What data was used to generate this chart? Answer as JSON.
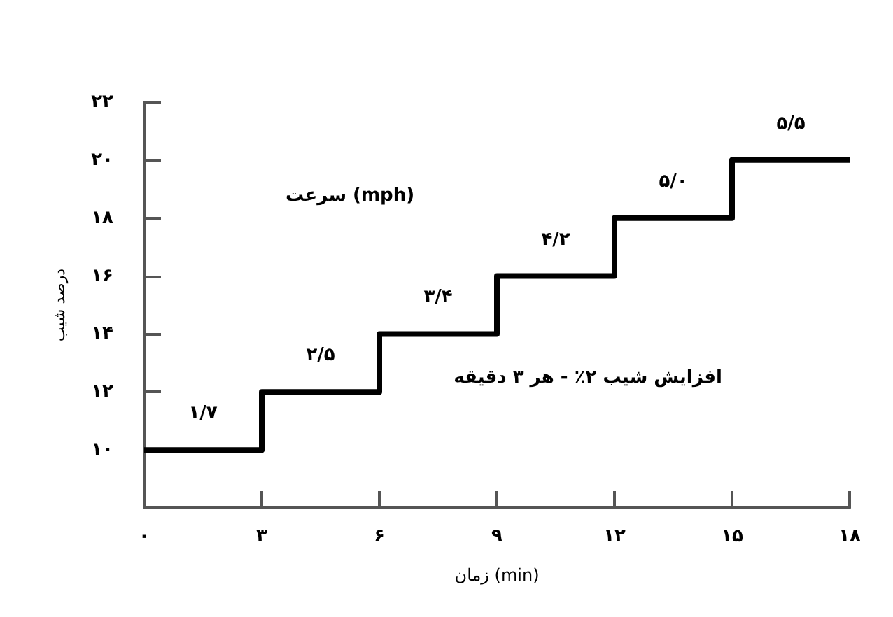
{
  "chart_data": {
    "type": "step",
    "xlabel": "زمان (min)",
    "ylabel": "درصد شیب",
    "x": [
      0,
      3,
      6,
      9,
      12,
      15,
      18
    ],
    "series": [
      {
        "color": "#000000",
        "values": [
          10,
          12,
          14,
          16,
          18,
          20,
          20
        ]
      }
    ],
    "xlim": [
      0,
      18
    ],
    "xticks": [
      {
        "value": 0,
        "label": "۰"
      },
      {
        "value": 3,
        "label": "۳"
      },
      {
        "value": 6,
        "label": "۶"
      },
      {
        "value": 9,
        "label": "۹"
      },
      {
        "value": 12,
        "label": "۱۲"
      },
      {
        "value": 15,
        "label": "۱۵"
      },
      {
        "value": 18,
        "label": "۱۸"
      }
    ],
    "ylim": [
      8,
      22
    ],
    "yticks": [
      {
        "value": 10,
        "label": "۱۰"
      },
      {
        "value": 12,
        "label": "۱۲"
      },
      {
        "value": 14,
        "label": "۱۴"
      },
      {
        "value": 16,
        "label": "۱۶"
      },
      {
        "value": 18,
        "label": "۱۸"
      },
      {
        "value": 20,
        "label": "۲۰"
      },
      {
        "value": 22,
        "label": "۲۲"
      }
    ],
    "annotations": [
      {
        "text": "۱/۷",
        "x": 1.5,
        "y": 10
      },
      {
        "text": "۲/۵",
        "x": 4.5,
        "y": 12
      },
      {
        "text": "۳/۴",
        "x": 7.5,
        "y": 14
      },
      {
        "text": "۴/۲",
        "x": 10.5,
        "y": 16
      },
      {
        "text": "۵/۰",
        "x": 13.5,
        "y": 18
      },
      {
        "text": "۵/۵",
        "x": 16.5,
        "y": 20
      },
      "سرعت (mph)",
      "افزایش شیب ۲٪ - هر ۳ دقیقه"
    ],
    "grid": false,
    "marker": "none",
    "line_style": "solid"
  }
}
